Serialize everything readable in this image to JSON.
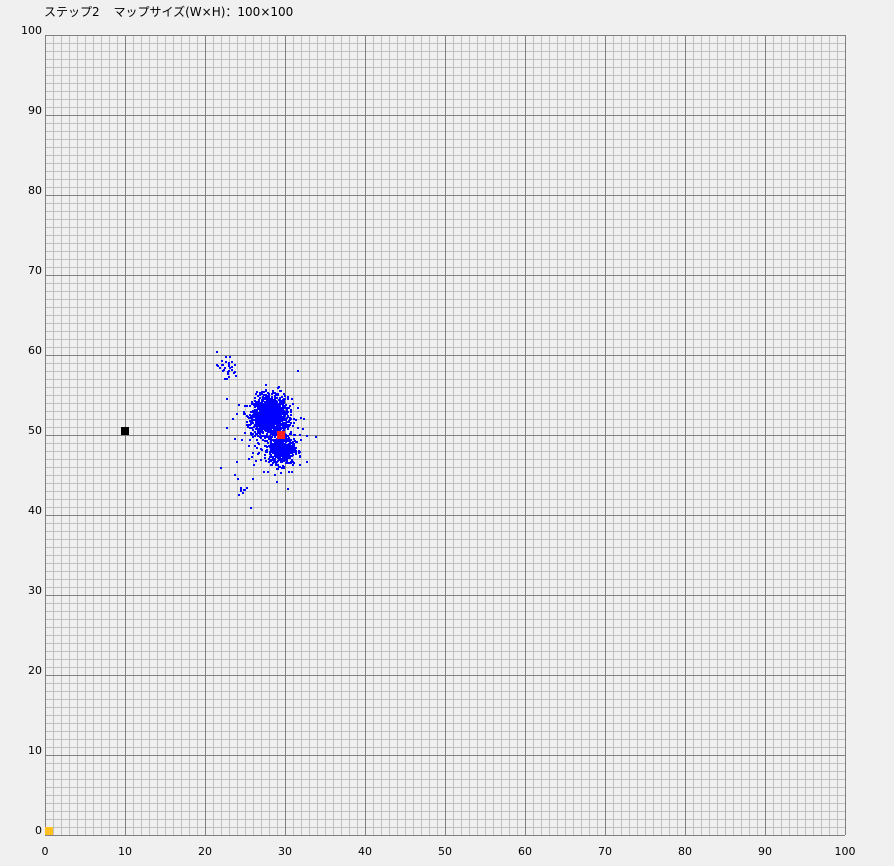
{
  "header": {
    "step_label": "ステップ2",
    "map_size_label": "マップサイズ(W×H)：100×100"
  },
  "colors": {
    "background": "#f0f0f0",
    "minor_grid": "#c0c0c0",
    "major_grid": "#808080",
    "particles": "#0000ff",
    "estimate": "#ff2020",
    "landmark": "#000000",
    "origin_marker": "#ffc020"
  },
  "chart_data": {
    "type": "scatter",
    "xlim": [
      0,
      100
    ],
    "ylim": [
      0,
      100
    ],
    "x_ticks": [
      0,
      10,
      20,
      30,
      40,
      50,
      60,
      70,
      80,
      90,
      100
    ],
    "y_ticks": [
      0,
      10,
      20,
      30,
      40,
      50,
      60,
      70,
      80,
      90,
      100
    ],
    "grid": true,
    "minor_grid_step": 1,
    "major_grid_step": 10,
    "points": {
      "landmark": [
        10,
        50.5
      ],
      "estimate": [
        29.5,
        50
      ],
      "origin": [
        0.3,
        0.3
      ]
    },
    "particle_clusters": [
      {
        "center": [
          28,
          52.5
        ],
        "spread": [
          1.1,
          1.2
        ],
        "count": 1400
      },
      {
        "center": [
          29.5,
          48.3
        ],
        "spread": [
          0.8,
          0.9
        ],
        "count": 500
      },
      {
        "center": [
          22.5,
          58.5
        ],
        "spread": [
          0.8,
          0.9
        ],
        "count": 30
      },
      {
        "center": [
          24.5,
          43.2
        ],
        "spread": [
          0.5,
          0.5
        ],
        "count": 8
      },
      {
        "center": [
          28,
          50
        ],
        "spread": [
          2.2,
          3.0
        ],
        "count": 120
      }
    ]
  }
}
